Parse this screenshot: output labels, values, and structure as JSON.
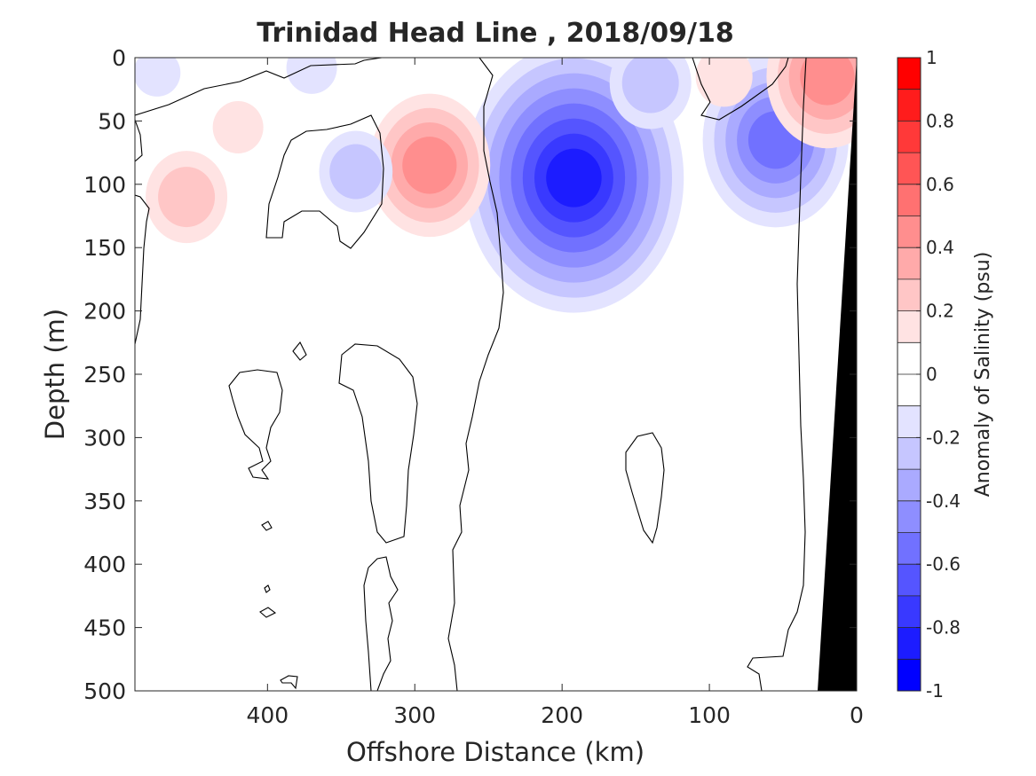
{
  "chart_data": {
    "type": "heatmap",
    "title": "Trinidad Head Line , 2018/09/18",
    "xlabel": "Offshore Distance (km)",
    "ylabel": "Depth (m)",
    "xlim": [
      490,
      0
    ],
    "x_reversed": true,
    "ylim": [
      500,
      0
    ],
    "y_reversed": true,
    "x_ticks": [
      400,
      300,
      200,
      100,
      0
    ],
    "y_ticks": [
      0,
      50,
      100,
      150,
      200,
      250,
      300,
      350,
      400,
      450,
      500
    ],
    "grid": false,
    "colorbar": {
      "label": "Anomaly of Salinity (psu)",
      "range": [
        -1,
        1
      ],
      "ticks": [
        1,
        0.8,
        0.6,
        0.4,
        0.2,
        0,
        -0.2,
        -0.4,
        -0.6,
        -0.8,
        -1
      ],
      "levels": 20,
      "colormap": "blue-white-red"
    },
    "features": [
      {
        "sign": "negative",
        "peak_x": 192,
        "peak_y": 95,
        "peak_value": -0.85
      },
      {
        "sign": "negative",
        "peak_x": 55,
        "peak_y": 65,
        "peak_value": -0.55
      },
      {
        "sign": "negative",
        "peak_x": 140,
        "peak_y": 20,
        "peak_value": -0.3
      },
      {
        "sign": "negative",
        "peak_x": 340,
        "peak_y": 90,
        "peak_value": -0.25
      },
      {
        "sign": "negative",
        "peak_x": 370,
        "peak_y": 8,
        "peak_value": -0.15
      },
      {
        "sign": "negative",
        "peak_x": 475,
        "peak_y": 12,
        "peak_value": -0.12
      },
      {
        "sign": "positive",
        "peak_x": 290,
        "peak_y": 85,
        "peak_value": 0.45
      },
      {
        "sign": "positive",
        "peak_x": 455,
        "peak_y": 110,
        "peak_value": 0.3
      },
      {
        "sign": "positive",
        "peak_x": 420,
        "peak_y": 55,
        "peak_value": 0.15
      },
      {
        "sign": "positive",
        "peak_x": 20,
        "peak_y": 15,
        "peak_value": 0.45
      },
      {
        "sign": "positive",
        "peak_x": 90,
        "peak_y": 15,
        "peak_value": 0.2
      }
    ],
    "bathymetry": {
      "label": "",
      "color": "#000000",
      "surface_x": 0,
      "bottom_x": 27
    }
  },
  "colors": {
    "positive": "#ff0000",
    "negative": "#0000ff",
    "zero": "#ffffff",
    "contour": "#000000",
    "land": "#000000"
  }
}
